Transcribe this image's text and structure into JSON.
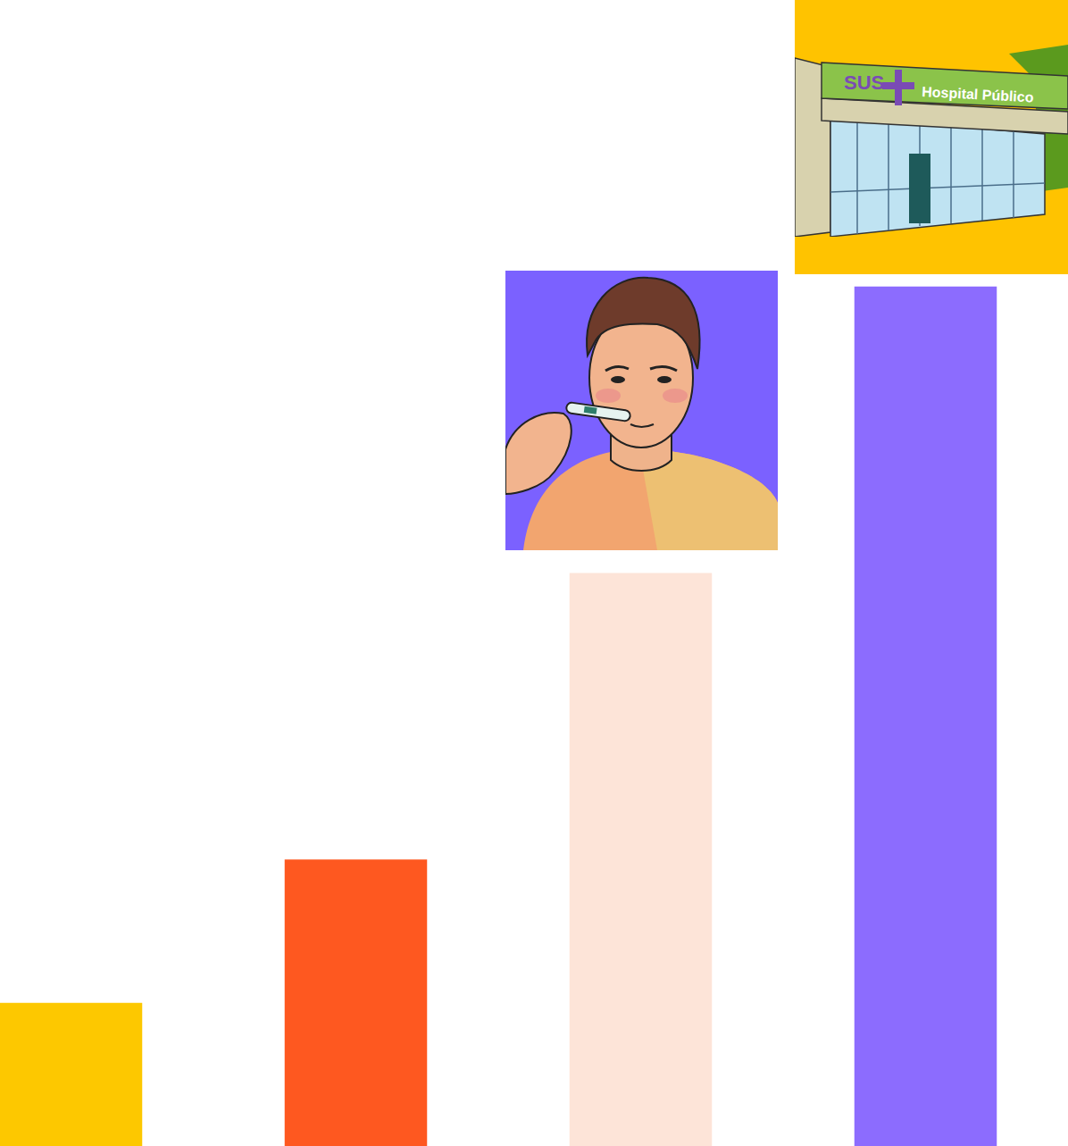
{
  "chart_data": {
    "type": "bar",
    "categories": [
      null,
      null,
      null,
      null
    ],
    "values": [
      1,
      2,
      4,
      6
    ],
    "colors": [
      "#FDC800",
      "#FE5820",
      "#FDE4D8",
      "#8C6CFE"
    ],
    "ylim": [
      0,
      8
    ],
    "grid": false,
    "tick_labels": false,
    "annotations": [
      "SUS",
      "Hospital Público"
    ]
  }
}
